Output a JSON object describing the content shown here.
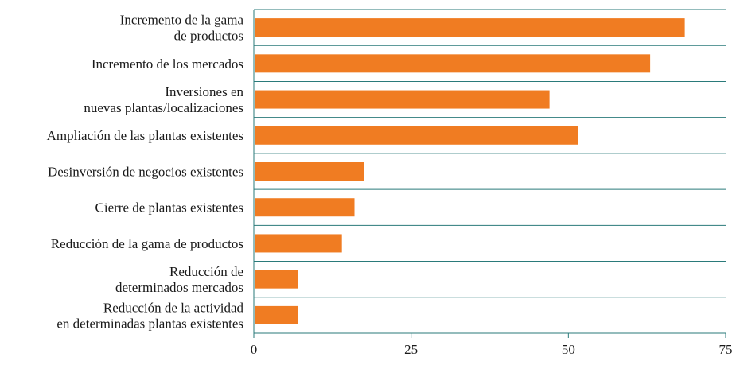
{
  "chart_data": {
    "type": "bar",
    "orientation": "horizontal",
    "title": "",
    "xlabel": "",
    "ylabel": "",
    "categories": [
      [
        "Incremento de la gama",
        "de productos"
      ],
      [
        "Incremento de los mercados"
      ],
      [
        "Inversiones en",
        "nuevas plantas/localizaciones"
      ],
      [
        "Ampliación de las plantas existentes"
      ],
      [
        "Desinversión de negocios existentes"
      ],
      [
        "Cierre de plantas existentes"
      ],
      [
        "Reducción de la gama de productos"
      ],
      [
        "Reducción de",
        "determinados mercados"
      ],
      [
        "Reducción de la actividad",
        "en determinadas plantas existentes"
      ]
    ],
    "values": [
      68.5,
      63,
      47,
      51.5,
      17.5,
      16,
      14,
      7,
      7
    ],
    "xlim": [
      0,
      75
    ],
    "xticks": [
      0,
      25,
      50,
      75
    ],
    "grid": true,
    "bar_color": "#f07c22",
    "grid_color": "#2a7a7a"
  }
}
